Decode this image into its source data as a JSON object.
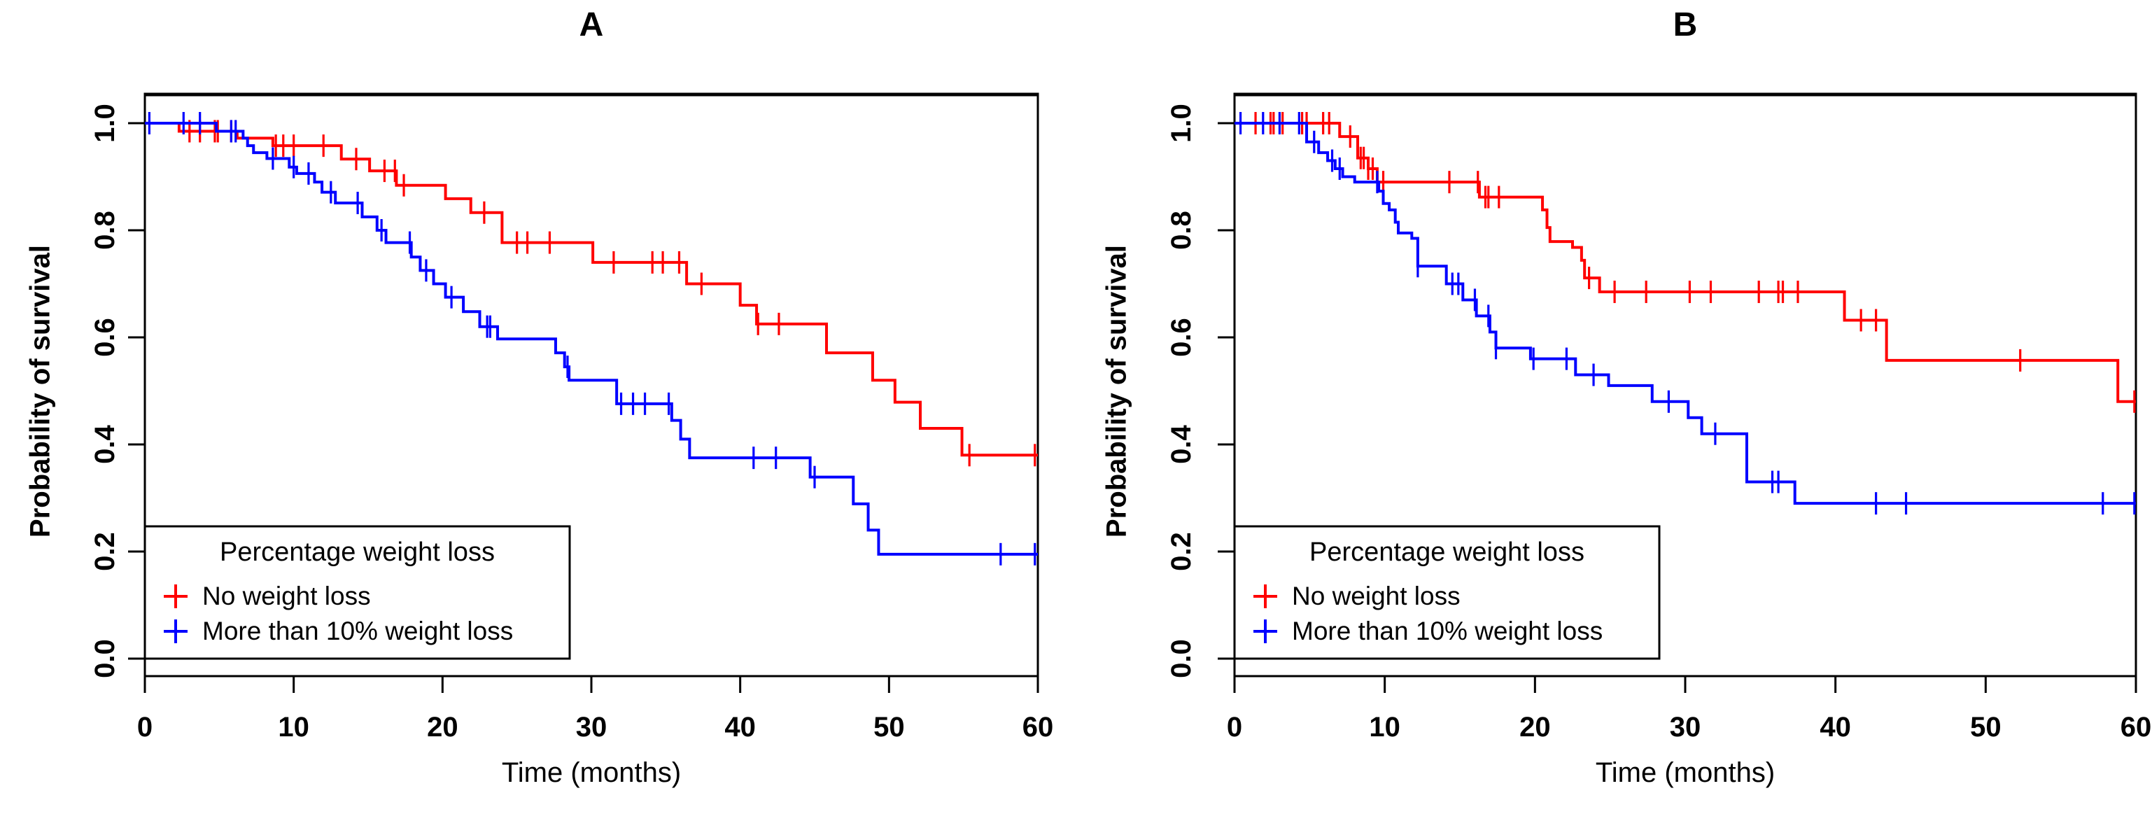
{
  "figure": {
    "background": "#ffffff",
    "axis_color": "#000000",
    "text_color": "#000000"
  },
  "chart_data": [
    {
      "panel_label": "A",
      "type": "line",
      "subtype": "kaplan-meier-step",
      "xlabel": "Time (months)",
      "ylabel": "Probability of survival",
      "xlim": [
        0,
        60
      ],
      "ylim": [
        0.0,
        1.0
      ],
      "xticks": [
        0,
        10,
        20,
        30,
        40,
        50,
        60
      ],
      "xtick_labels": [
        "0",
        "10",
        "20",
        "30",
        "40",
        "50",
        "60"
      ],
      "yticks": [
        0.0,
        0.2,
        0.4,
        0.6,
        0.8,
        1.0
      ],
      "ytick_labels": [
        "0.0",
        "0.2",
        "0.4",
        "0.6",
        "0.8",
        "1.0"
      ],
      "grid": false,
      "legend": {
        "title": "Percentage weight loss",
        "position": "bottom-left",
        "marker": "+"
      },
      "series": [
        {
          "name": "No weight loss",
          "color": "#ff0000",
          "marker": "+",
          "steps": [
            [
              0,
              1.0
            ],
            [
              2.3,
              0.985
            ],
            [
              6.2,
              0.972
            ],
            [
              8.6,
              0.958
            ],
            [
              13.2,
              0.933
            ],
            [
              15.1,
              0.911
            ],
            [
              16.9,
              0.884
            ],
            [
              20.2,
              0.859
            ],
            [
              21.9,
              0.833
            ],
            [
              24.0,
              0.777
            ],
            [
              30.1,
              0.74
            ],
            [
              36.4,
              0.7
            ],
            [
              40.0,
              0.66
            ],
            [
              41.1,
              0.625
            ],
            [
              45.8,
              0.571
            ],
            [
              48.9,
              0.52
            ],
            [
              50.4,
              0.479
            ],
            [
              52.1,
              0.43
            ],
            [
              54.9,
              0.38
            ]
          ],
          "censor_times": [
            3.0,
            3.7,
            4.7,
            4.9,
            5.8,
            8.8,
            9.3,
            10.0,
            12.0,
            14.2,
            16.1,
            16.8,
            17.4,
            22.8,
            25.0,
            25.7,
            27.2,
            31.5,
            34.1,
            34.8,
            35.9,
            37.4,
            41.2,
            42.6,
            55.4,
            59.8
          ]
        },
        {
          "name": "More than 10% weight loss",
          "color": "#0000ff",
          "marker": "+",
          "steps": [
            [
              0,
              1.0
            ],
            [
              4.8,
              0.985
            ],
            [
              6.6,
              0.972
            ],
            [
              6.9,
              0.958
            ],
            [
              7.3,
              0.945
            ],
            [
              8.2,
              0.934
            ],
            [
              9.7,
              0.918
            ],
            [
              10.2,
              0.906
            ],
            [
              11.4,
              0.89
            ],
            [
              11.9,
              0.871
            ],
            [
              12.8,
              0.851
            ],
            [
              14.6,
              0.825
            ],
            [
              15.6,
              0.8
            ],
            [
              16.2,
              0.777
            ],
            [
              17.9,
              0.75
            ],
            [
              18.5,
              0.725
            ],
            [
              19.4,
              0.7
            ],
            [
              20.2,
              0.675
            ],
            [
              21.4,
              0.648
            ],
            [
              22.5,
              0.62
            ],
            [
              23.7,
              0.597
            ],
            [
              27.6,
              0.571
            ],
            [
              28.2,
              0.545
            ],
            [
              28.5,
              0.52
            ],
            [
              31.7,
              0.476
            ],
            [
              35.4,
              0.445
            ],
            [
              36.0,
              0.41
            ],
            [
              36.6,
              0.375
            ],
            [
              44.7,
              0.339
            ],
            [
              47.6,
              0.289
            ],
            [
              48.6,
              0.24
            ],
            [
              49.3,
              0.195
            ]
          ],
          "censor_times": [
            0.3,
            2.6,
            3.7,
            5.8,
            6.1,
            8.6,
            10.0,
            11.0,
            12.5,
            14.3,
            15.9,
            17.8,
            18.9,
            20.6,
            23.0,
            23.2,
            28.4,
            32.0,
            32.8,
            33.6,
            35.2,
            40.9,
            42.4,
            45.0,
            57.5,
            59.8
          ]
        }
      ]
    },
    {
      "panel_label": "B",
      "type": "line",
      "subtype": "kaplan-meier-step",
      "xlabel": "Time (months)",
      "ylabel": "Probability of survival",
      "xlim": [
        0,
        60
      ],
      "ylim": [
        0.0,
        1.0
      ],
      "xticks": [
        0,
        10,
        20,
        30,
        40,
        50,
        60
      ],
      "xtick_labels": [
        "0",
        "10",
        "20",
        "30",
        "40",
        "50",
        "60"
      ],
      "yticks": [
        0.0,
        0.2,
        0.4,
        0.6,
        0.8,
        1.0
      ],
      "ytick_labels": [
        "0.0",
        "0.2",
        "0.4",
        "0.6",
        "0.8",
        "1.0"
      ],
      "grid": false,
      "legend": {
        "title": "Percentage weight loss",
        "position": "bottom-left",
        "marker": "+"
      },
      "series": [
        {
          "name": "No weight loss",
          "color": "#ff0000",
          "marker": "+",
          "steps": [
            [
              0,
              1.0
            ],
            [
              7.0,
              0.975
            ],
            [
              8.2,
              0.935
            ],
            [
              8.9,
              0.915
            ],
            [
              9.5,
              0.89
            ],
            [
              16.3,
              0.862
            ],
            [
              20.5,
              0.838
            ],
            [
              20.8,
              0.805
            ],
            [
              21.0,
              0.779
            ],
            [
              22.5,
              0.768
            ],
            [
              23.1,
              0.744
            ],
            [
              23.3,
              0.711
            ],
            [
              24.3,
              0.685
            ],
            [
              40.6,
              0.632
            ],
            [
              43.4,
              0.557
            ],
            [
              58.8,
              0.48
            ]
          ],
          "censor_times": [
            1.4,
            2.4,
            2.6,
            3.2,
            4.5,
            4.8,
            5.9,
            6.3,
            7.7,
            8.4,
            8.6,
            8.9,
            9.2,
            9.9,
            14.3,
            16.2,
            16.7,
            16.9,
            17.6,
            23.6,
            25.3,
            27.4,
            30.3,
            31.7,
            34.9,
            36.2,
            36.5,
            37.5,
            41.7,
            42.7,
            52.3,
            59.9
          ]
        },
        {
          "name": "More than 10% weight loss",
          "color": "#0000ff",
          "marker": "+",
          "steps": [
            [
              0,
              1.0
            ],
            [
              4.8,
              0.965
            ],
            [
              5.6,
              0.945
            ],
            [
              6.2,
              0.93
            ],
            [
              6.7,
              0.915
            ],
            [
              7.2,
              0.9
            ],
            [
              8.0,
              0.89
            ],
            [
              9.6,
              0.873
            ],
            [
              9.9,
              0.85
            ],
            [
              10.3,
              0.838
            ],
            [
              10.7,
              0.815
            ],
            [
              10.9,
              0.795
            ],
            [
              11.8,
              0.785
            ],
            [
              12.2,
              0.733
            ],
            [
              14.1,
              0.7
            ],
            [
              15.2,
              0.67
            ],
            [
              16.1,
              0.64
            ],
            [
              17.0,
              0.61
            ],
            [
              17.4,
              0.58
            ],
            [
              19.7,
              0.56
            ],
            [
              22.7,
              0.53
            ],
            [
              24.9,
              0.51
            ],
            [
              27.8,
              0.48
            ],
            [
              30.2,
              0.45
            ],
            [
              31.1,
              0.42
            ],
            [
              34.1,
              0.33
            ],
            [
              37.3,
              0.29
            ]
          ],
          "censor_times": [
            0.4,
            1.9,
            3.0,
            4.3,
            5.3,
            6.5,
            7.0,
            9.5,
            12.2,
            14.5,
            14.9,
            16.0,
            16.9,
            17.4,
            19.9,
            22.1,
            23.9,
            28.9,
            32.0,
            35.8,
            36.2,
            42.7,
            44.7,
            57.8,
            59.9
          ]
        }
      ]
    }
  ]
}
